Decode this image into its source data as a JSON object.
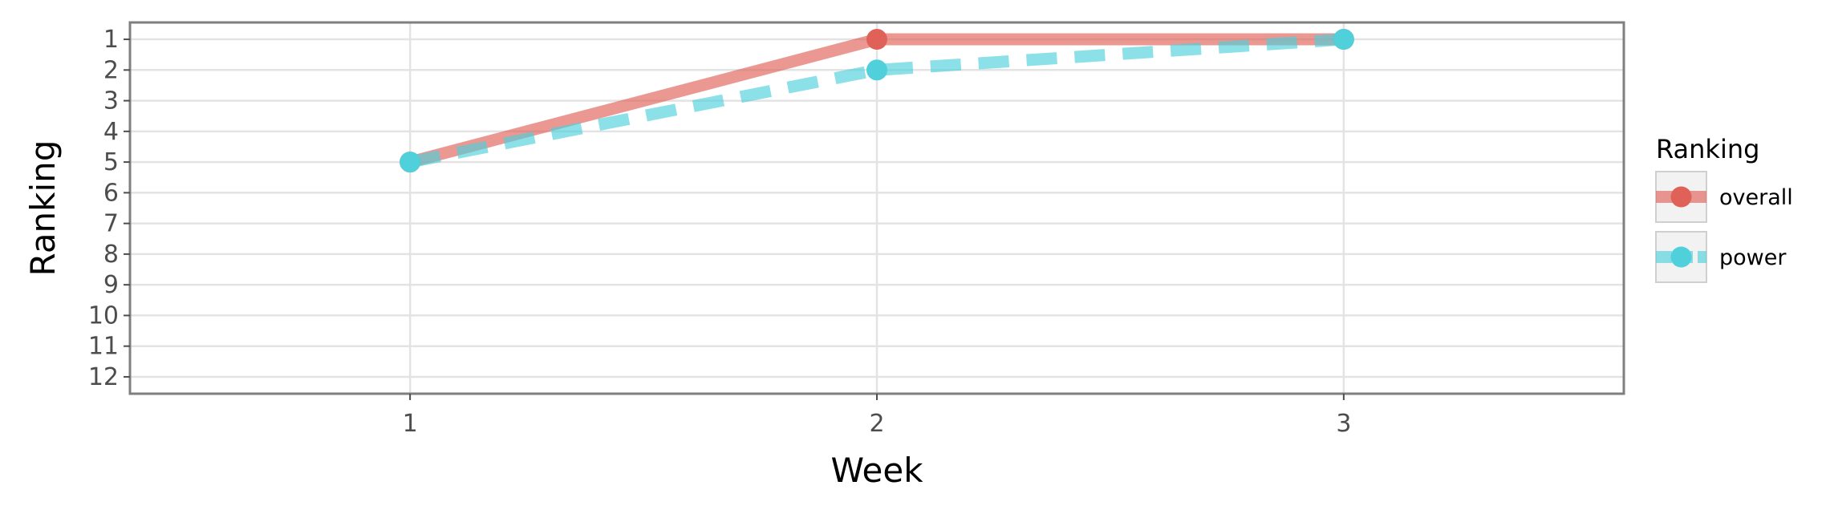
{
  "chart_data": {
    "type": "line",
    "title": "",
    "xlabel": "Week",
    "ylabel": "Ranking",
    "x": [
      1,
      2,
      3
    ],
    "x_ticks": [
      "1",
      "2",
      "3"
    ],
    "xlim": [
      0.4,
      3.6
    ],
    "y_ticks": [
      "1",
      "2",
      "3",
      "4",
      "5",
      "6",
      "7",
      "8",
      "9",
      "10",
      "11",
      "12"
    ],
    "ylim": [
      0.45,
      12.55
    ],
    "y_reversed": true,
    "grid": true,
    "legend": {
      "title": "Ranking",
      "position": "right"
    },
    "series": [
      {
        "name": "overall",
        "values": [
          5,
          1,
          1
        ],
        "color": "#e06158",
        "line_style": "solid"
      },
      {
        "name": "power",
        "values": [
          5,
          2,
          1
        ],
        "color": "#4fd0da",
        "line_style": "dashed"
      }
    ]
  }
}
